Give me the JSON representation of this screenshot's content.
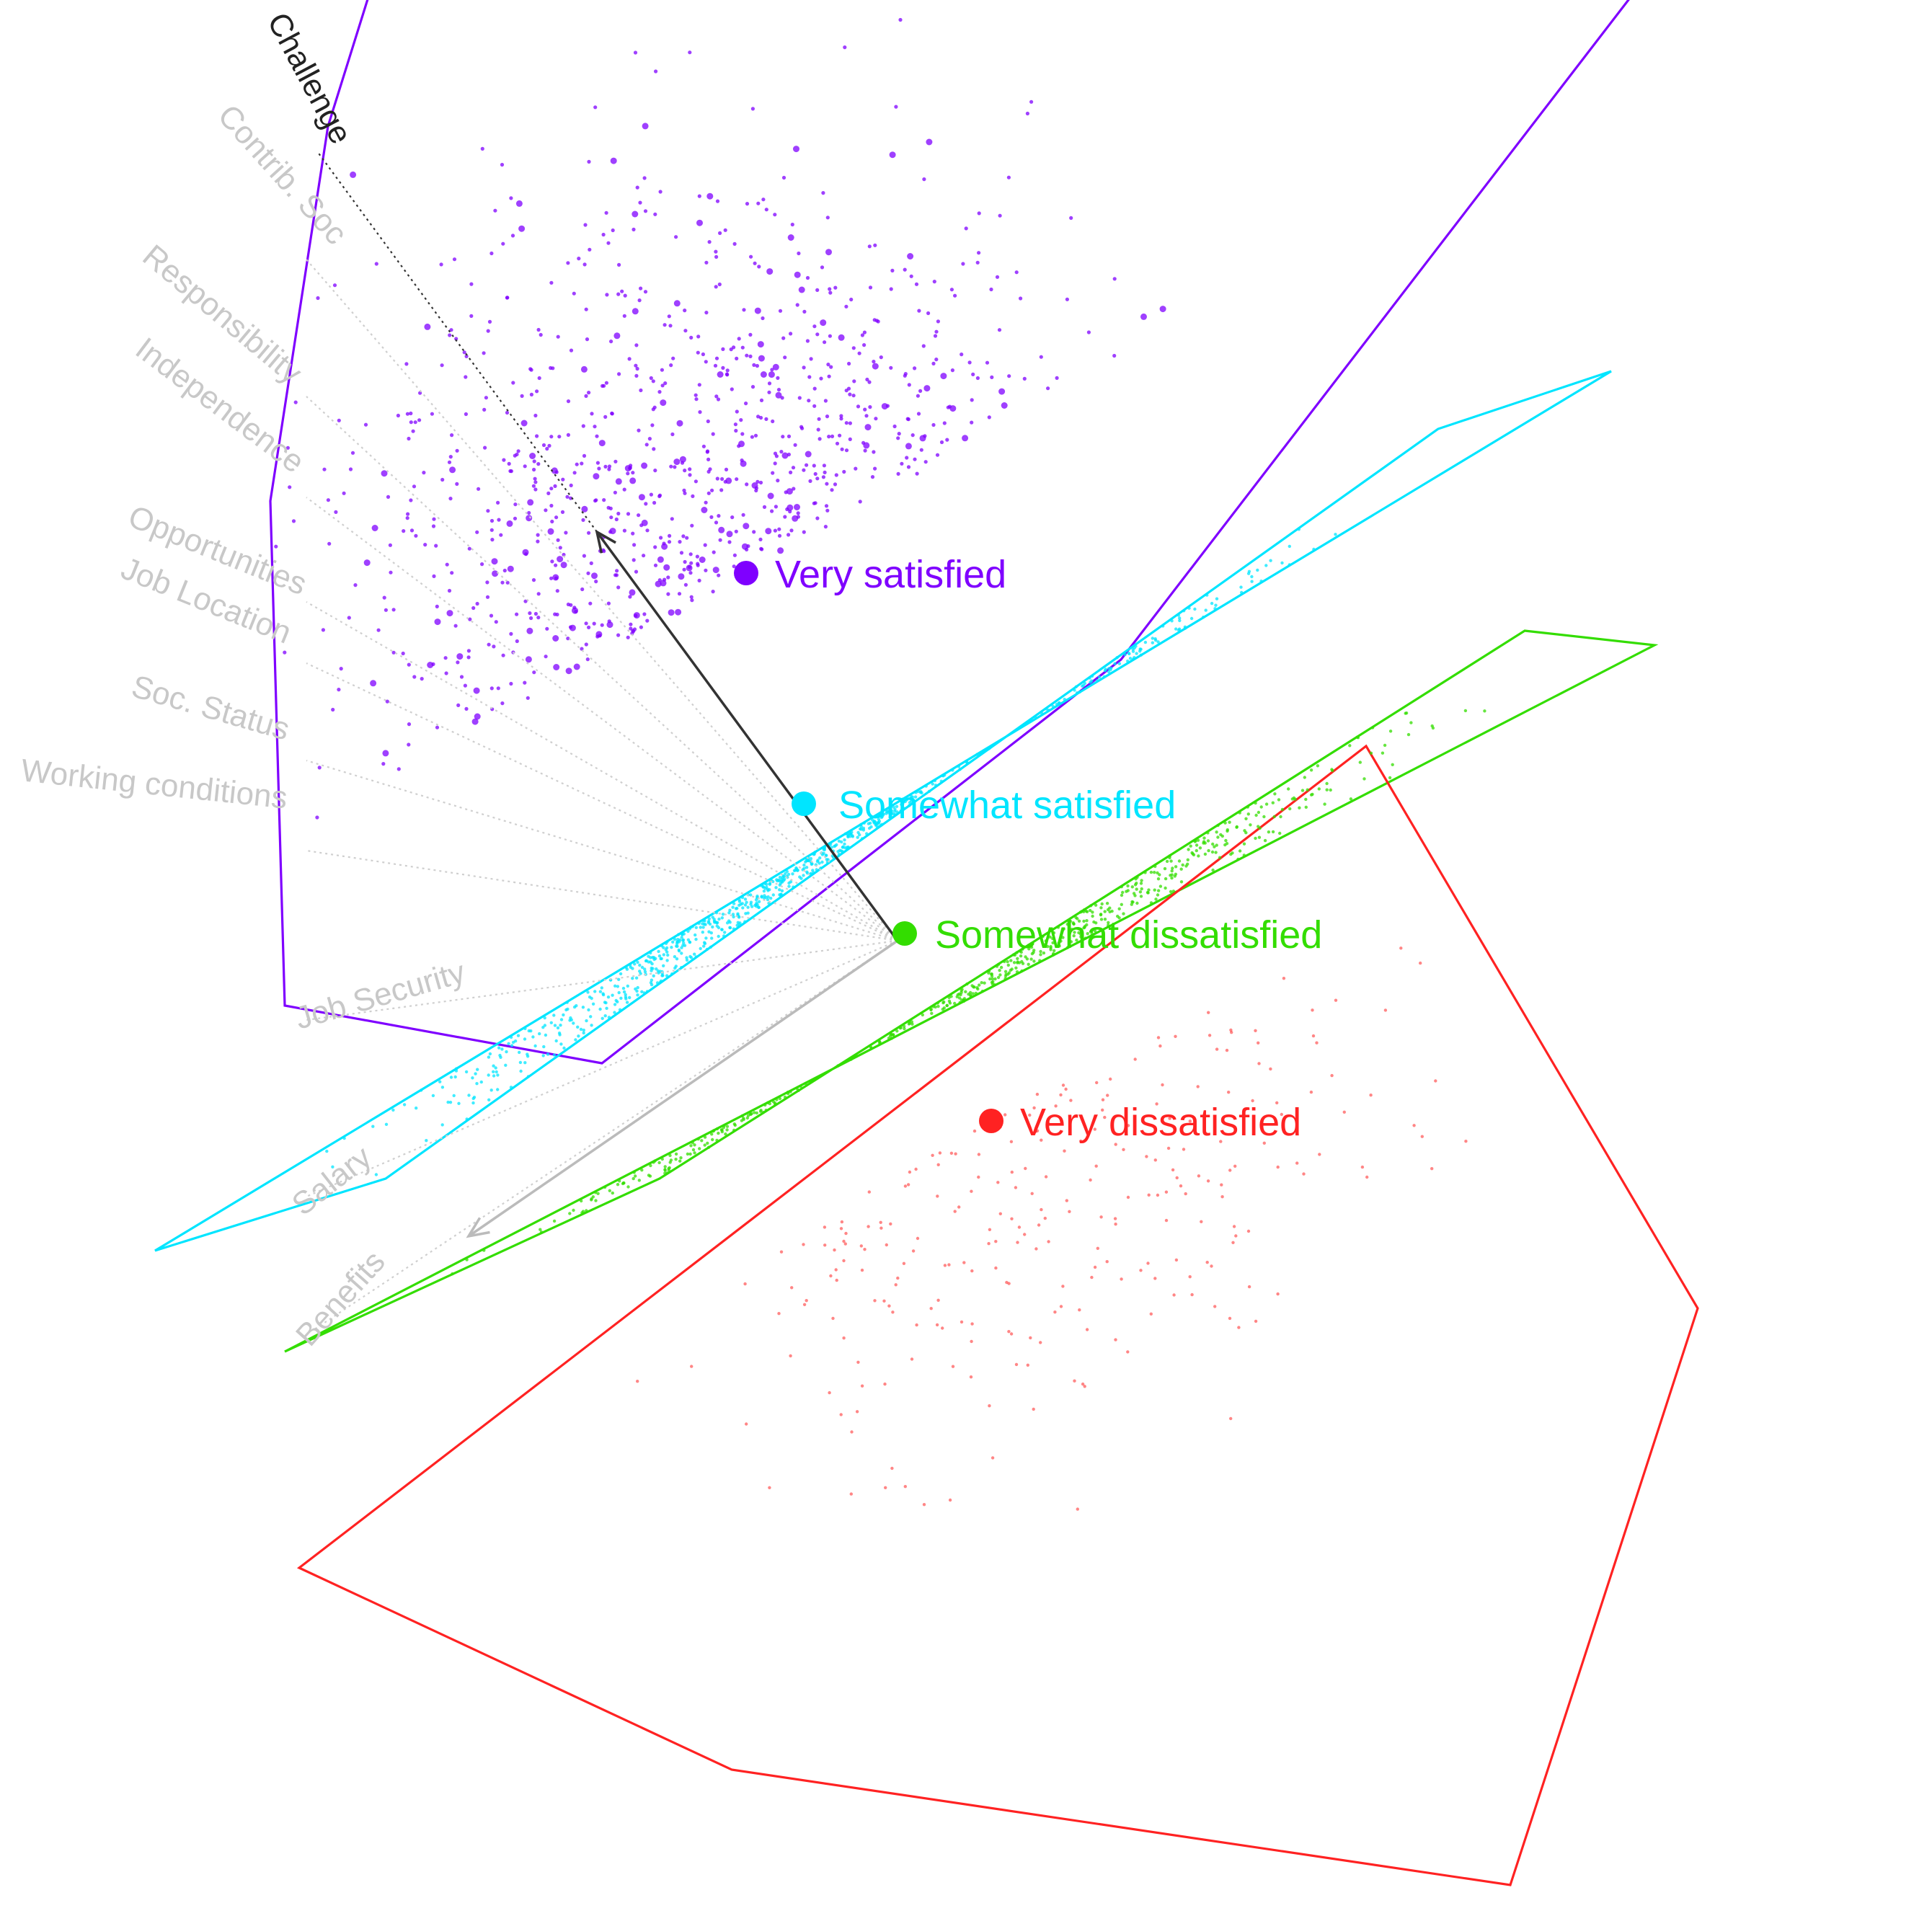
{
  "chart_data": {
    "type": "scatter",
    "title": "",
    "xlabel": "",
    "ylabel": "",
    "grid": false,
    "legend": "none",
    "biplot_variables": [
      {
        "name": "Challenge",
        "highlight": true
      },
      {
        "name": "Contrib. Soc",
        "highlight": false
      },
      {
        "name": "Responsibility",
        "highlight": false
      },
      {
        "name": "Independence",
        "highlight": false
      },
      {
        "name": "Opportunities",
        "highlight": false
      },
      {
        "name": "Job Location",
        "highlight": false
      },
      {
        "name": "Soc. Status",
        "highlight": false
      },
      {
        "name": "Working conditions",
        "highlight": false
      },
      {
        "name": "Job Security",
        "highlight": false
      },
      {
        "name": "Salary",
        "highlight": false
      },
      {
        "name": "Benefits",
        "highlight": false
      }
    ],
    "groups": [
      {
        "name": "Very satisfied",
        "color": "#7f00ff",
        "centroid": [
          -0.35,
          1.05
        ],
        "hull": [
          [
            -1.55,
            3.4
          ],
          [
            -0.05,
            4.05
          ],
          [
            2.95,
            3.35
          ],
          [
            0.95,
            0.75
          ],
          [
            -0.85,
            -0.65
          ],
          [
            -1.95,
            -0.45
          ],
          [
            -2.0,
            1.3
          ],
          [
            -1.8,
            2.6
          ]
        ]
      },
      {
        "name": "Somewhat satisfied",
        "color": "#00e5ff",
        "centroid": [
          -0.15,
          0.25
        ],
        "hull": [
          [
            2.05,
            1.55
          ],
          [
            2.65,
            1.75
          ],
          [
            -2.4,
            -1.3
          ],
          [
            -1.6,
            -1.05
          ]
        ]
      },
      {
        "name": "Somewhat dissatisfied",
        "color": "#33dd00",
        "centroid": [
          0.2,
          -0.2
        ],
        "hull": [
          [
            2.35,
            0.85
          ],
          [
            2.8,
            0.8
          ],
          [
            -1.95,
            -1.65
          ],
          [
            -0.65,
            -1.05
          ]
        ]
      },
      {
        "name": "Very dissatisfied",
        "color": "#ff2222",
        "centroid": [
          0.5,
          -0.85
        ],
        "hull": [
          [
            1.8,
            0.45
          ],
          [
            2.95,
            -1.5
          ],
          [
            2.3,
            -3.5
          ],
          [
            -0.4,
            -3.1
          ],
          [
            -1.9,
            -2.4
          ]
        ]
      }
    ]
  }
}
